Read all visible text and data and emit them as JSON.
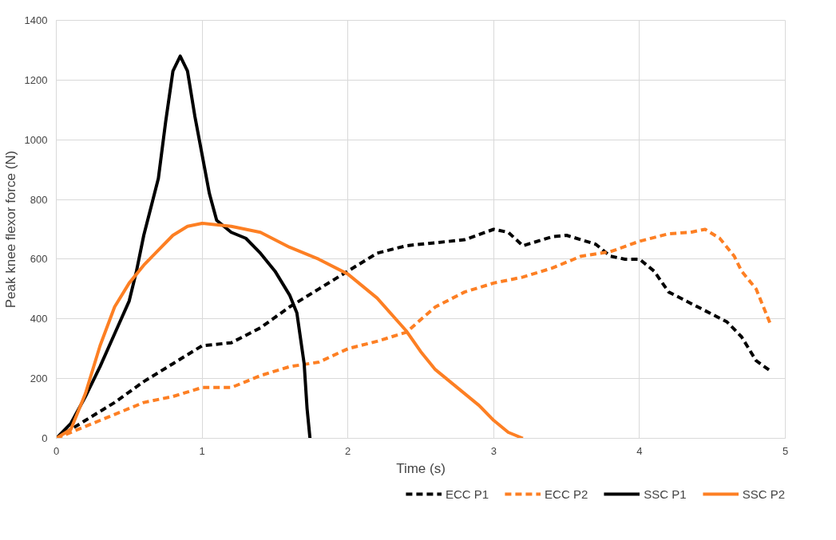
{
  "chart_data": {
    "type": "line",
    "xlabel": "Time (s)",
    "ylabel": "Peak knee flexor force (N)",
    "xlim": [
      0,
      5
    ],
    "xticks": [
      0,
      1,
      2,
      3,
      4,
      5
    ],
    "ylim": [
      0,
      1400
    ],
    "yticks": [
      0,
      200,
      400,
      600,
      800,
      1000,
      1200,
      1400
    ],
    "grid": true,
    "legend": "bottom",
    "series": [
      {
        "name": "ECC P1",
        "color": "#000000",
        "line_style": "dashed",
        "x": [
          0,
          0.2,
          0.4,
          0.6,
          0.8,
          1.0,
          1.2,
          1.4,
          1.6,
          1.8,
          2.0,
          2.2,
          2.4,
          2.6,
          2.8,
          3.0,
          3.1,
          3.2,
          3.4,
          3.5,
          3.7,
          3.8,
          3.9,
          4.0,
          4.1,
          4.2,
          4.4,
          4.6,
          4.7,
          4.8,
          4.9
        ],
        "values": [
          0,
          60,
          120,
          190,
          250,
          310,
          320,
          370,
          440,
          500,
          560,
          620,
          645,
          655,
          665,
          700,
          690,
          645,
          675,
          680,
          650,
          610,
          600,
          600,
          560,
          490,
          440,
          390,
          340,
          260,
          225
        ]
      },
      {
        "name": "ECC P2",
        "color": "#fd7f23",
        "line_style": "dashed",
        "x": [
          0,
          0.2,
          0.4,
          0.6,
          0.8,
          1.0,
          1.2,
          1.4,
          1.6,
          1.8,
          2.0,
          2.2,
          2.4,
          2.6,
          2.8,
          3.0,
          3.2,
          3.4,
          3.6,
          3.8,
          4.0,
          4.2,
          4.35,
          4.45,
          4.55,
          4.65,
          4.7,
          4.8,
          4.9
        ],
        "values": [
          0,
          40,
          80,
          120,
          140,
          170,
          170,
          210,
          240,
          255,
          300,
          325,
          355,
          440,
          490,
          520,
          540,
          570,
          610,
          625,
          660,
          685,
          690,
          700,
          670,
          610,
          560,
          500,
          380
        ]
      },
      {
        "name": "SSC P1",
        "color": "#000000",
        "line_style": "solid",
        "x": [
          0,
          0.1,
          0.2,
          0.3,
          0.4,
          0.5,
          0.55,
          0.6,
          0.7,
          0.75,
          0.8,
          0.85,
          0.9,
          0.95,
          1.0,
          1.05,
          1.1,
          1.2,
          1.3,
          1.4,
          1.5,
          1.6,
          1.65,
          1.7,
          1.72,
          1.74
        ],
        "values": [
          0,
          50,
          140,
          240,
          350,
          460,
          560,
          680,
          870,
          1060,
          1230,
          1280,
          1230,
          1080,
          950,
          820,
          730,
          690,
          670,
          620,
          560,
          480,
          420,
          250,
          100,
          0
        ]
      },
      {
        "name": "SSC P2",
        "color": "#fd7f23",
        "line_style": "solid",
        "x": [
          0,
          0.1,
          0.2,
          0.3,
          0.4,
          0.5,
          0.6,
          0.7,
          0.8,
          0.9,
          1.0,
          1.2,
          1.4,
          1.6,
          1.8,
          2.0,
          2.2,
          2.4,
          2.5,
          2.6,
          2.8,
          2.9,
          3.0,
          3.1,
          3.2
        ],
        "values": [
          0,
          30,
          150,
          310,
          440,
          520,
          580,
          630,
          680,
          710,
          720,
          710,
          690,
          640,
          600,
          550,
          470,
          360,
          290,
          230,
          150,
          110,
          60,
          20,
          0
        ]
      }
    ]
  }
}
